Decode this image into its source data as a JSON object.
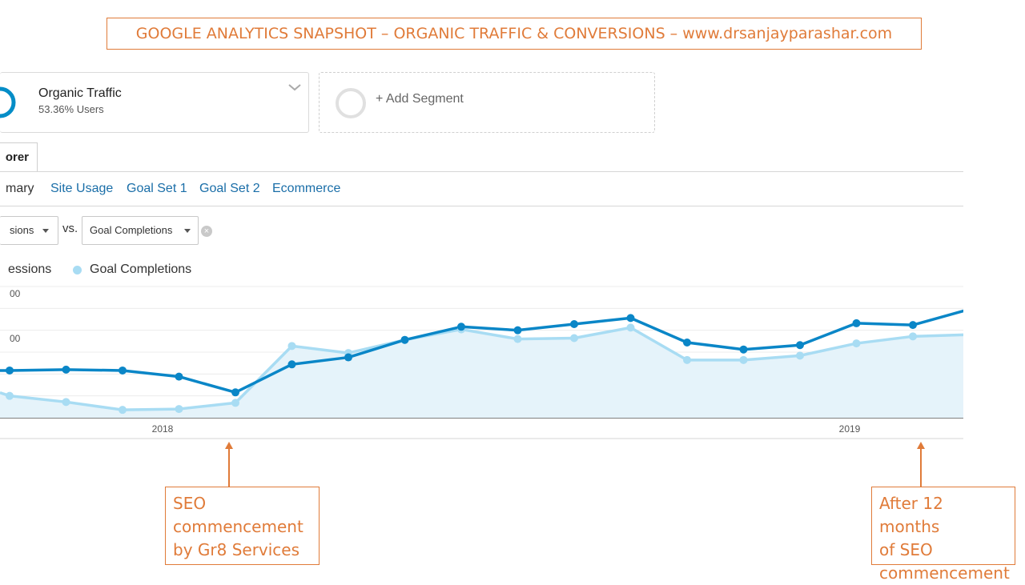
{
  "banner": {
    "title": "GOOGLE ANALYTICS SNAPSHOT – ORGANIC TRAFFIC & CONVERSIONS – www.drsanjayparashar.com"
  },
  "segment": {
    "name": "Organic Traffic",
    "share": "53.36% Users"
  },
  "add_segment": {
    "label": "+ Add Segment"
  },
  "tabs": {
    "explorer": "orer"
  },
  "subtabs": [
    "mary",
    "Site Usage",
    "Goal Set 1",
    "Goal Set 2",
    "Ecommerce"
  ],
  "metric_selector": {
    "primary": "sions",
    "vs": "vs.",
    "secondary": "Goal Completions"
  },
  "legend": {
    "series1": "essions",
    "series2": "Goal Completions"
  },
  "y_ticks": [
    "00",
    "00"
  ],
  "chart_data": {
    "type": "line",
    "title": "",
    "x_ticks": [
      "2018",
      "2019"
    ],
    "x_note": "monthly points; '2018' tick near point 4, '2019' tick near point 18",
    "series": [
      {
        "name": "essions",
        "color": "#0a86c7",
        "values": [
          54,
          55,
          54,
          47,
          29,
          61,
          69,
          89,
          104,
          100,
          107,
          114,
          86,
          78,
          83,
          108,
          106,
          124
        ]
      },
      {
        "name": "Goal Completions",
        "color": "#a8dcf3",
        "values": [
          25,
          18,
          9,
          10,
          17,
          82,
          74,
          89,
          101,
          90,
          91,
          103,
          66,
          66,
          71,
          85,
          93,
          95
        ]
      }
    ],
    "ylim": [
      0,
      150
    ],
    "grid": true
  },
  "annotations": [
    {
      "lines": [
        "SEO",
        "commencement",
        "by Gr8 Services"
      ]
    },
    {
      "lines": [
        "After 12 months",
        "of SEO",
        "commencement"
      ]
    }
  ],
  "colors": {
    "annotation": "#e07b39",
    "series1": "#0a86c7",
    "series2": "#a8dcf3",
    "link": "#1a6ea8"
  }
}
